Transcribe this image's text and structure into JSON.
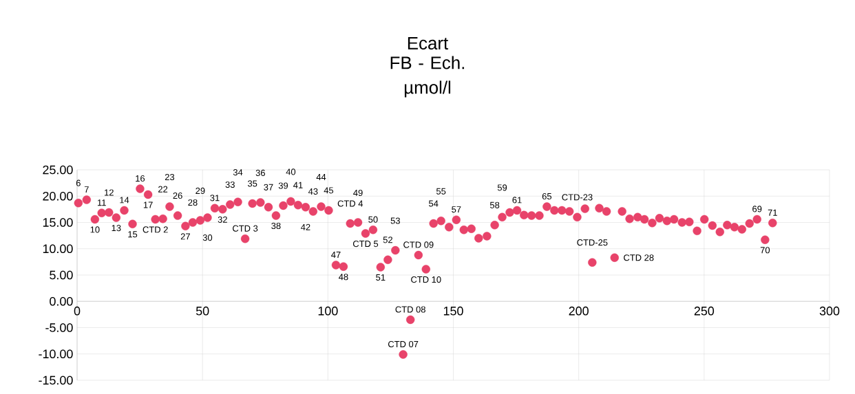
{
  "chart_data": {
    "type": "scatter",
    "title": "Ecart",
    "subtitle": "FB - Ech. µmol/l",
    "x": [
      0.5,
      3.8,
      7.1,
      9.8,
      12.7,
      15.6,
      18.8,
      22.1,
      25.1,
      28.3,
      31.2,
      34.2,
      36.9,
      40.1,
      43.2,
      46.1,
      49.1,
      52.0,
      54.9,
      58.0,
      61.0,
      64.1,
      67.0,
      69.9,
      73.1,
      76.3,
      79.3,
      82.2,
      85.2,
      88.1,
      91.1,
      94.1,
      97.3,
      100.3,
      103.2,
      106.2,
      108.9,
      112.0,
      115.0,
      118.0,
      121.0,
      123.9,
      126.9,
      130.0,
      132.9,
      136.1,
      139.1,
      142.1,
      145.1,
      148.3,
      151.2,
      154.2,
      157.2,
      160.1,
      163.4,
      166.5,
      169.5,
      172.5,
      175.4,
      178.2,
      181.2,
      184.3,
      187.3,
      190.3,
      193.3,
      196.3,
      199.4,
      202.5,
      205.4,
      208.2,
      211.1,
      214.3,
      217.3,
      220.3,
      223.5,
      226.2,
      229.3,
      232.2,
      235.2,
      238.0,
      241.2,
      244.1,
      247.2,
      250.1,
      253.3,
      256.3,
      259.2,
      262.1,
      265.1,
      268.1,
      271.1,
      274.3,
      277.3
    ],
    "values": [
      18.7,
      19.3,
      15.6,
      16.8,
      16.9,
      15.9,
      17.3,
      14.7,
      21.4,
      20.3,
      15.6,
      15.7,
      18.0,
      16.3,
      14.3,
      15.0,
      15.4,
      15.9,
      17.7,
      17.5,
      18.4,
      18.9,
      11.9,
      18.6,
      18.8,
      17.9,
      16.3,
      18.2,
      19.0,
      18.3,
      17.9,
      17.1,
      18.0,
      17.3,
      6.9,
      6.6,
      14.8,
      15.0,
      12.9,
      13.6,
      6.5,
      7.9,
      9.7,
      -10.1,
      -3.5,
      8.8,
      6.1,
      14.8,
      15.3,
      14.1,
      15.5,
      13.6,
      13.8,
      12.0,
      12.4,
      14.5,
      16.0,
      16.9,
      17.3,
      16.4,
      16.3,
      16.3,
      18.0,
      17.3,
      17.3,
      17.1,
      16.0,
      17.6,
      7.4,
      17.7,
      17.1,
      8.3,
      17.1,
      15.7,
      16.0,
      15.6,
      14.9,
      15.8,
      15.3,
      15.6,
      15.0,
      15.1,
      13.4,
      15.6,
      14.4,
      13.2,
      14.5,
      14.1,
      13.7,
      14.8,
      15.6,
      11.7,
      14.9
    ],
    "color": "#e8436a",
    "grid": true,
    "xlim": [
      0,
      300
    ],
    "ylim": [
      -15,
      25
    ],
    "xticks": [
      0,
      50,
      100,
      150,
      200,
      250,
      300
    ],
    "yticks": [
      {
        "value": -15,
        "label": "-15.00"
      },
      {
        "value": -10,
        "label": "-10.00"
      },
      {
        "value": -5,
        "label": "-5.00"
      },
      {
        "value": 0,
        "label": "0.00"
      },
      {
        "value": 5,
        "label": "5.00"
      },
      {
        "value": 10,
        "label": "10.00"
      },
      {
        "value": 15,
        "label": "15.00"
      },
      {
        "value": 20,
        "label": "20.00"
      },
      {
        "value": 25,
        "label": "25.00"
      }
    ],
    "annotations": [
      {
        "text": "6",
        "x": 0.5,
        "y": 18.7
      },
      {
        "text": "7",
        "x": 3.8,
        "y": 19.3
      },
      {
        "text": "10",
        "x": 7.1,
        "y": 15.6
      },
      {
        "text": "11",
        "x": 9.8,
        "y": 16.8
      },
      {
        "text": "12",
        "x": 12.7,
        "y": 16.9
      },
      {
        "text": "13",
        "x": 15.6,
        "y": 15.9
      },
      {
        "text": "14",
        "x": 18.8,
        "y": 17.3
      },
      {
        "text": "15",
        "x": 22.1,
        "y": 14.7
      },
      {
        "text": "16",
        "x": 25.1,
        "y": 21.4
      },
      {
        "text": "17",
        "x": 28.3,
        "y": 20.3
      },
      {
        "text": "CTD 2",
        "x": 31.2,
        "y": 15.6
      },
      {
        "text": "22",
        "x": 34.2,
        "y": 15.7
      },
      {
        "text": "23",
        "x": 36.9,
        "y": 18.0
      },
      {
        "text": "26",
        "x": 40.1,
        "y": 16.3
      },
      {
        "text": "27",
        "x": 43.2,
        "y": 14.3
      },
      {
        "text": "28",
        "x": 46.1,
        "y": 15.0
      },
      {
        "text": "29",
        "x": 49.1,
        "y": 15.4
      },
      {
        "text": "30",
        "x": 52.0,
        "y": 15.9
      },
      {
        "text": "31",
        "x": 54.9,
        "y": 17.7
      },
      {
        "text": "32",
        "x": 58.0,
        "y": 17.5
      },
      {
        "text": "33",
        "x": 61.0,
        "y": 18.4
      },
      {
        "text": "34",
        "x": 64.1,
        "y": 18.9
      },
      {
        "text": "CTD 3",
        "x": 67.0,
        "y": 11.9
      },
      {
        "text": "35",
        "x": 69.9,
        "y": 18.6
      },
      {
        "text": "36",
        "x": 73.1,
        "y": 18.8
      },
      {
        "text": "37",
        "x": 76.3,
        "y": 17.9
      },
      {
        "text": "38",
        "x": 79.3,
        "y": 16.3
      },
      {
        "text": "39",
        "x": 82.2,
        "y": 18.2
      },
      {
        "text": "40",
        "x": 85.2,
        "y": 19.0
      },
      {
        "text": "41",
        "x": 88.1,
        "y": 18.3
      },
      {
        "text": "42",
        "x": 91.1,
        "y": 17.9
      },
      {
        "text": "43",
        "x": 94.1,
        "y": 17.1
      },
      {
        "text": "44",
        "x": 97.3,
        "y": 18.0
      },
      {
        "text": "45",
        "x": 100.3,
        "y": 17.3
      },
      {
        "text": "47",
        "x": 103.2,
        "y": 6.9
      },
      {
        "text": "48",
        "x": 106.2,
        "y": 6.6
      },
      {
        "text": "CTD 4",
        "x": 108.9,
        "y": 14.8
      },
      {
        "text": "49",
        "x": 112.0,
        "y": 15.0
      },
      {
        "text": "CTD 5",
        "x": 115.0,
        "y": 12.9
      },
      {
        "text": "50",
        "x": 118.0,
        "y": 13.6
      },
      {
        "text": "51",
        "x": 121.0,
        "y": 6.5
      },
      {
        "text": "52",
        "x": 123.9,
        "y": 7.9
      },
      {
        "text": "53",
        "x": 126.9,
        "y": 9.7
      },
      {
        "text": "CTD 07",
        "x": 130.0,
        "y": -10.1
      },
      {
        "text": "CTD 08",
        "x": 132.9,
        "y": -3.5
      },
      {
        "text": "CTD 09",
        "x": 136.1,
        "y": 8.8
      },
      {
        "text": "CTD 10",
        "x": 139.1,
        "y": 6.1
      },
      {
        "text": "54",
        "x": 142.1,
        "y": 14.8
      },
      {
        "text": "55",
        "x": 145.1,
        "y": 15.3
      },
      {
        "text": "57",
        "x": 151.2,
        "y": 15.5
      },
      {
        "text": "58",
        "x": 166.5,
        "y": 14.5
      },
      {
        "text": "59",
        "x": 169.5,
        "y": 16.0
      },
      {
        "text": "61",
        "x": 175.4,
        "y": 17.3
      },
      {
        "text": "65",
        "x": 187.3,
        "y": 18.0
      },
      {
        "text": "CTD-23",
        "x": 199.4,
        "y": 16.0
      },
      {
        "text": "CTD-25",
        "x": 205.4,
        "y": 7.4
      },
      {
        "text": "CTD 28",
        "x": 214.3,
        "y": 8.3
      },
      {
        "text": "69",
        "x": 271.1,
        "y": 15.6
      },
      {
        "text": "70",
        "x": 274.3,
        "y": 11.7
      },
      {
        "text": "71",
        "x": 277.3,
        "y": 14.9
      }
    ]
  }
}
